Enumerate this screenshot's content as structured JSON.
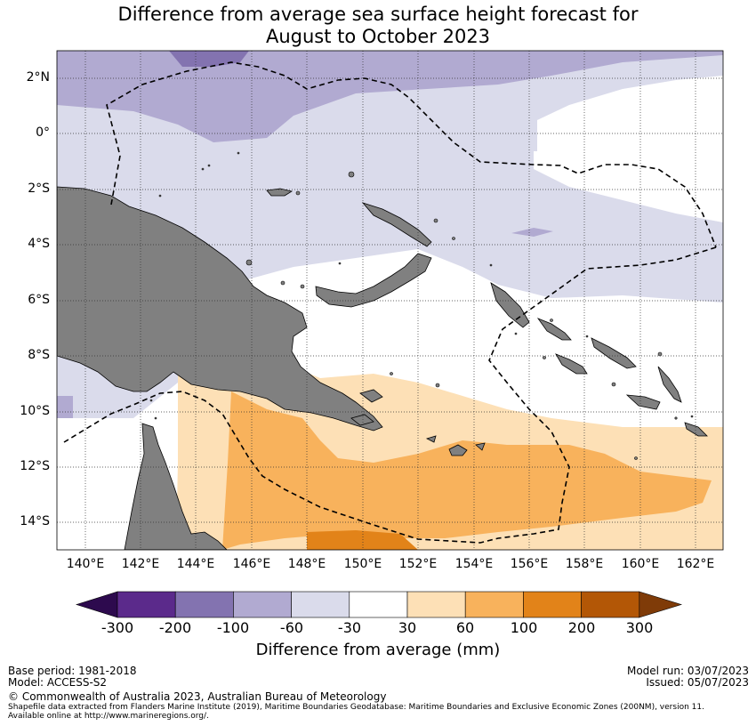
{
  "title": {
    "line1": "Difference from average sea surface height forecast for",
    "line2": "August to October 2023"
  },
  "axes": {
    "lat_labels": [
      "2°N",
      "0°",
      "2°S",
      "4°S",
      "6°S",
      "8°S",
      "10°S",
      "12°S",
      "14°S"
    ],
    "lon_labels": [
      "140°E",
      "142°E",
      "144°E",
      "146°E",
      "148°E",
      "150°E",
      "152°E",
      "154°E",
      "156°E",
      "158°E",
      "160°E",
      "162°E"
    ]
  },
  "colorbar": {
    "ticks": [
      "-300",
      "-200",
      "-100",
      "-60",
      "-30",
      "30",
      "60",
      "100",
      "200",
      "300"
    ],
    "colors": [
      "#2d0a4e",
      "#5b2a8b",
      "#8373b0",
      "#b1aad1",
      "#dadbeb",
      "#ffffff",
      "#fde0b6",
      "#f8b25c",
      "#e28319",
      "#b35706",
      "#7f3b08"
    ],
    "label": "Difference from average (mm)"
  },
  "colors": {
    "land": "#808080",
    "ocean_white": "#ffffff",
    "purple_light": "#dadbeb",
    "purple_mid": "#b1aad1",
    "purple_dark": "#8373b0",
    "orange_light": "#fde0b6",
    "orange_mid": "#f8b25c",
    "orange_dark": "#e28319"
  },
  "footer": {
    "base_period": "Base period: 1981-2018",
    "model": "Model: ACCESS-S2",
    "model_run": "Model run: 03/07/2023",
    "issued": "Issued: 05/07/2023",
    "copyright": "© Commonwealth of Australia 2023, Australian Bureau of Meteorology",
    "source_line1": "Shapefile data extracted from Flanders Marine Institute (2019), Maritime Boundaries Geodatabase: Maritime Boundaries and Exclusive Economic Zones (200NM), version 11.",
    "source_line2": "Available online at http://www.marineregions.org/."
  }
}
